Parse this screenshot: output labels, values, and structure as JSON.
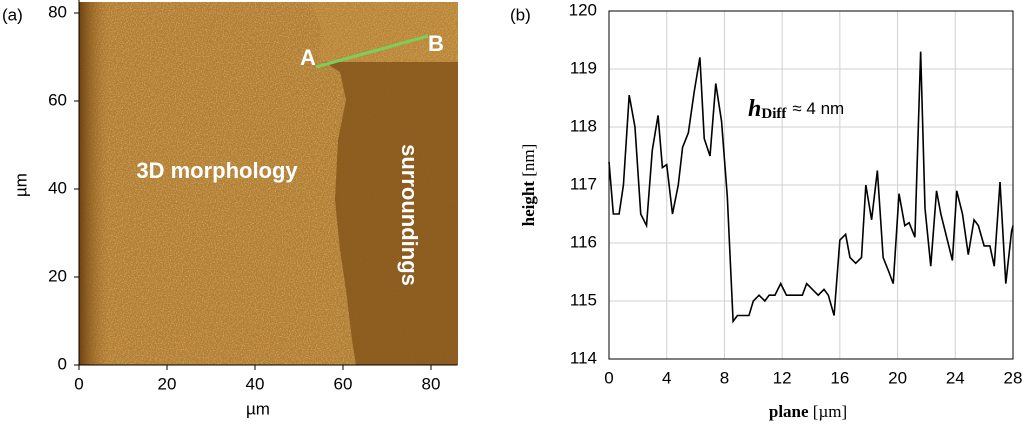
{
  "chart_data": [
    {
      "type": "image",
      "panel_label": "(a)",
      "xlabel": "µm",
      "ylabel": "µm",
      "xlim": [
        0,
        86
      ],
      "ylim": [
        0,
        83
      ],
      "xticks": [
        0,
        20,
        40,
        60,
        80
      ],
      "yticks": [
        0,
        20,
        40,
        60,
        80
      ],
      "annotations": [
        "3D morphology",
        "surroundings",
        "A",
        "B"
      ],
      "line_color": "#7ccf5a"
    },
    {
      "type": "line",
      "panel_label": "(b)",
      "xlabel": {
        "name": "plane",
        "unit": "[µm]"
      },
      "ylabel": {
        "name": "height",
        "unit": "[nm]"
      },
      "annotation": {
        "symbol": "h",
        "subscript": "Diff",
        "text": "≈ 4 nm"
      },
      "xlim": [
        0,
        28
      ],
      "ylim": [
        114,
        120
      ],
      "xticks": [
        0,
        4,
        8,
        12,
        16,
        20,
        24,
        28
      ],
      "yticks": [
        114,
        115,
        116,
        117,
        118,
        119,
        120
      ],
      "grid": true,
      "color": "#000000",
      "x": [
        0,
        0.3,
        0.7,
        1.0,
        1.4,
        1.8,
        2.2,
        2.6,
        3.0,
        3.4,
        3.7,
        4.0,
        4.4,
        4.8,
        5.1,
        5.5,
        5.9,
        6.3,
        6.6,
        7.0,
        7.4,
        7.8,
        8.2,
        8.6,
        8.9,
        9.3,
        9.7,
        10.0,
        10.4,
        10.8,
        11.1,
        11.5,
        11.9,
        12.3,
        12.6,
        13.0,
        13.4,
        13.7,
        14.1,
        14.5,
        14.9,
        15.2,
        15.6,
        16.0,
        16.4,
        16.7,
        17.1,
        17.5,
        17.8,
        18.2,
        18.6,
        19.0,
        19.4,
        19.7,
        20.1,
        20.5,
        20.8,
        21.2,
        21.6,
        21.9,
        22.3,
        22.7,
        23.0,
        23.4,
        23.8,
        24.1,
        24.5,
        24.9,
        25.3,
        25.6,
        26.0,
        26.4,
        26.7,
        27.1,
        27.5,
        27.9,
        28.0
      ],
      "values": [
        117.4,
        116.5,
        116.5,
        117.0,
        118.55,
        118.0,
        116.5,
        116.3,
        117.6,
        118.2,
        117.3,
        117.35,
        116.5,
        117.0,
        117.65,
        117.9,
        118.6,
        119.2,
        117.8,
        117.5,
        118.75,
        118.1,
        116.8,
        114.65,
        114.75,
        114.75,
        114.75,
        115.0,
        115.1,
        115.0,
        115.1,
        115.1,
        115.3,
        115.1,
        115.1,
        115.1,
        115.1,
        115.3,
        115.2,
        115.1,
        115.2,
        115.1,
        114.75,
        116.05,
        116.15,
        115.75,
        115.65,
        115.75,
        117.0,
        116.4,
        117.25,
        115.75,
        115.5,
        115.3,
        116.85,
        116.3,
        116.35,
        116.1,
        119.3,
        116.6,
        115.6,
        116.9,
        116.5,
        116.1,
        115.7,
        116.9,
        116.5,
        115.8,
        116.4,
        116.3,
        115.95,
        115.95,
        115.6,
        117.05,
        115.3,
        116.2,
        116.3
      ]
    }
  ]
}
